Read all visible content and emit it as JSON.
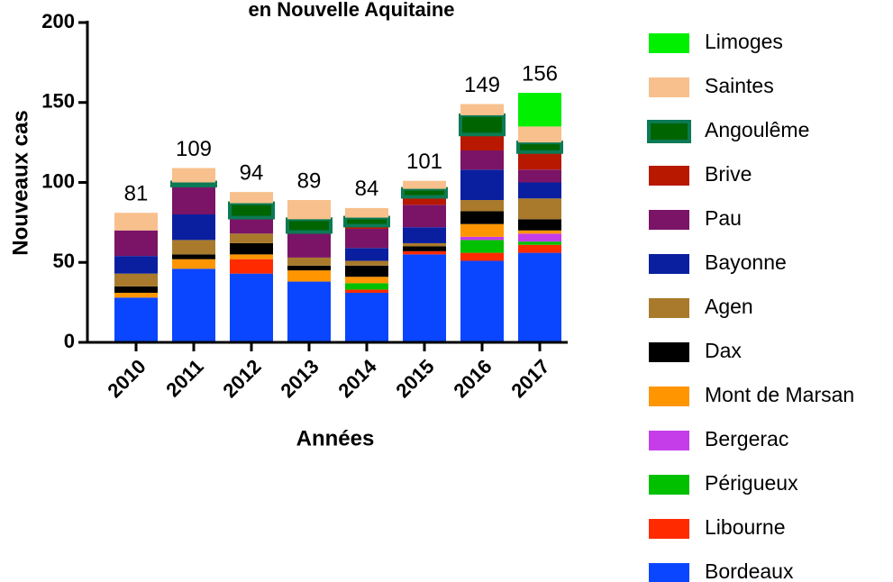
{
  "chart_data": {
    "type": "stacked_bar",
    "title": "en Nouvelle Aquitaine",
    "x_label": "Années",
    "y_label": "Nouveaux cas",
    "categories": [
      "2010",
      "2011",
      "2012",
      "2013",
      "2014",
      "2015",
      "2016",
      "2017"
    ],
    "totals": [
      81,
      109,
      94,
      89,
      84,
      101,
      149,
      156
    ],
    "ylim": [
      0,
      200
    ],
    "yticks": [
      0,
      50,
      100,
      150,
      200
    ],
    "series": [
      {
        "name": "Bordeaux",
        "color": "#0a46ff",
        "values": [
          28,
          46,
          43,
          38,
          31,
          55,
          51,
          56
        ]
      },
      {
        "name": "Libourne",
        "color": "#ff2a00",
        "values": [
          0,
          0,
          9,
          0,
          2,
          2,
          5,
          5
        ]
      },
      {
        "name": "Périgueux",
        "color": "#00c000",
        "values": [
          0,
          0,
          0,
          0,
          4,
          0,
          8,
          2
        ]
      },
      {
        "name": "Bergerac",
        "color": "#c43de8",
        "values": [
          0,
          0,
          0,
          0,
          0,
          0,
          2,
          5
        ]
      },
      {
        "name": "Mont de Marsan",
        "color": "#ff9500",
        "values": [
          3,
          6,
          3,
          7,
          4,
          0,
          8,
          2
        ]
      },
      {
        "name": "Dax",
        "color": "#000000",
        "values": [
          4,
          3,
          7,
          3,
          7,
          3,
          8,
          7
        ]
      },
      {
        "name": "Agen",
        "color": "#a97a2c",
        "values": [
          8,
          9,
          6,
          5,
          3,
          2,
          7,
          13
        ]
      },
      {
        "name": "Bayonne",
        "color": "#0a1fa0",
        "values": [
          11,
          16,
          0,
          0,
          8,
          10,
          19,
          10
        ]
      },
      {
        "name": "Pau",
        "color": "#7b1466",
        "values": [
          16,
          18,
          10,
          16,
          12,
          14,
          12,
          8
        ]
      },
      {
        "name": "Brive",
        "color": "#b81800",
        "values": [
          0,
          0,
          0,
          0,
          2,
          5,
          10,
          11
        ]
      },
      {
        "name": "Angoulême",
        "color": "#0b7a55",
        "values": [
          0,
          2,
          9,
          8,
          5,
          5,
          12,
          6
        ]
      },
      {
        "name": "Saintes",
        "color": "#f7c08c",
        "values": [
          11,
          9,
          7,
          12,
          6,
          5,
          7,
          10
        ]
      },
      {
        "name": "Limoges",
        "color": "#00f000",
        "values": [
          0,
          0,
          0,
          0,
          0,
          0,
          0,
          21
        ]
      }
    ]
  }
}
